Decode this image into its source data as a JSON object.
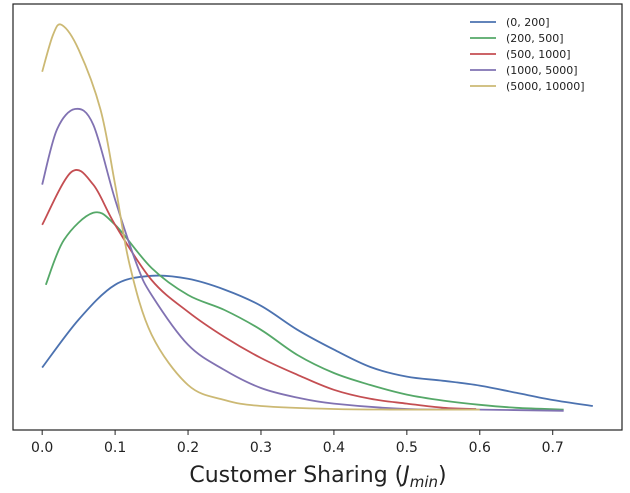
{
  "chart_data": {
    "type": "line",
    "xlabel": {
      "text": "Customer Sharing (",
      "var": "J",
      "sub": "min",
      "close": ")"
    },
    "xlim": [
      -0.04,
      0.795
    ],
    "ylim": [
      -0.32,
      6.78
    ],
    "xticks": [
      {
        "value": 0,
        "label": "0.0"
      },
      0.1,
      0.2,
      0.3,
      0.4,
      0.5,
      0.6,
      0.7
    ],
    "legend": "upper right",
    "series": [
      {
        "name": "(0, 200]",
        "color": "#4c72b0",
        "x": [
          0,
          0.05,
          0.1,
          0.15,
          0.2,
          0.25,
          0.3,
          0.35,
          0.4,
          0.45,
          0.5,
          0.55,
          0.6,
          0.65,
          0.7,
          0.755
        ],
        "values": [
          0.72,
          1.52,
          2.1,
          2.25,
          2.2,
          2.02,
          1.75,
          1.35,
          1.02,
          0.73,
          0.57,
          0.5,
          0.42,
          0.3,
          0.18,
          0.08
        ]
      },
      {
        "name": "(200, 500]",
        "color": "#55a868",
        "x": [
          0.005,
          0.03,
          0.07,
          0.1,
          0.15,
          0.2,
          0.25,
          0.3,
          0.35,
          0.4,
          0.45,
          0.5,
          0.55,
          0.6,
          0.65,
          0.715
        ],
        "values": [
          2.1,
          2.85,
          3.3,
          3.1,
          2.38,
          1.93,
          1.68,
          1.35,
          0.93,
          0.63,
          0.43,
          0.27,
          0.17,
          0.1,
          0.05,
          0.02
        ]
      },
      {
        "name": "(500, 1000]",
        "color": "#c44e52",
        "x": [
          0,
          0.04,
          0.07,
          0.1,
          0.15,
          0.2,
          0.25,
          0.3,
          0.35,
          0.4,
          0.45,
          0.5,
          0.55,
          0.595
        ],
        "values": [
          3.1,
          3.98,
          3.77,
          3.1,
          2.18,
          1.65,
          1.23,
          0.88,
          0.6,
          0.35,
          0.2,
          0.12,
          0.05,
          0.03
        ]
      },
      {
        "name": "(1000, 5000]",
        "color": "#8172b2",
        "x": [
          0,
          0.02,
          0.045,
          0.07,
          0.1,
          0.13,
          0.15,
          0.2,
          0.25,
          0.3,
          0.35,
          0.4,
          0.5,
          0.6,
          0.715
        ],
        "values": [
          3.77,
          4.68,
          5.03,
          4.77,
          3.52,
          2.43,
          1.93,
          1.1,
          0.68,
          0.38,
          0.22,
          0.12,
          0.03,
          0.02,
          0
        ]
      },
      {
        "name": "(5000, 10000]",
        "color": "#ccb974",
        "x": [
          0,
          0.015,
          0.027,
          0.05,
          0.08,
          0.1,
          0.12,
          0.15,
          0.2,
          0.25,
          0.3,
          0.4,
          0.5,
          0.6
        ],
        "values": [
          5.65,
          6.27,
          6.43,
          6.02,
          5.02,
          3.77,
          2.43,
          1.27,
          0.43,
          0.18,
          0.08,
          0.03,
          0.02,
          0.02
        ]
      }
    ]
  }
}
